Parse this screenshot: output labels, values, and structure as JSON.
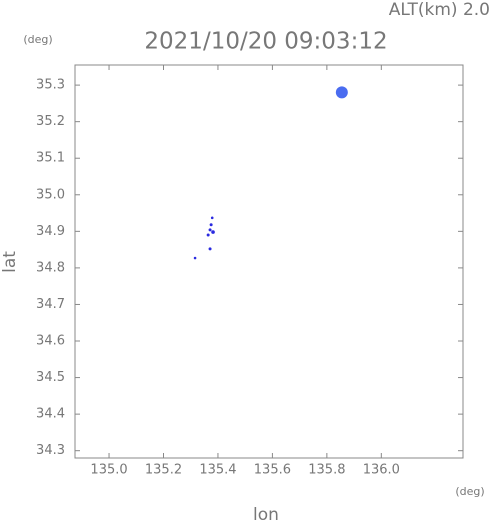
{
  "chart_data": {
    "type": "scatter",
    "title": "2021/10/20 09:03:12",
    "subtitle": "ALT(km) 2.0",
    "y_unit": "(deg)",
    "x_unit": "(deg)",
    "xlabel": "lon",
    "ylabel": "lat",
    "xlim": [
      134.875,
      136.3
    ],
    "ylim": [
      34.28,
      35.355
    ],
    "xticks": [
      {
        "value": 135.0,
        "label": "135.0"
      },
      135.2,
      135.4,
      135.6,
      135.8,
      {
        "value": 136.0,
        "label": "136.0"
      }
    ],
    "yticks": [
      34.3,
      34.4,
      34.5,
      34.6,
      34.7,
      34.8,
      34.9,
      {
        "value": 35.0,
        "label": "35.0"
      },
      35.1,
      35.2,
      35.3
    ],
    "series": [
      {
        "color": "#4a6cf0",
        "x": [
          135.855
        ],
        "values": [
          35.28
        ],
        "sizes": [
          6
        ]
      },
      {
        "color": "#2a2ae0",
        "x": [
          135.379,
          135.375,
          135.371,
          135.382,
          135.364,
          135.371,
          135.316
        ],
        "values": [
          34.937,
          34.918,
          34.904,
          34.898,
          34.89,
          34.852,
          34.827
        ],
        "sizes": [
          1.3,
          1.5,
          1.5,
          1.8,
          1.5,
          1.5,
          1.3
        ]
      }
    ]
  }
}
